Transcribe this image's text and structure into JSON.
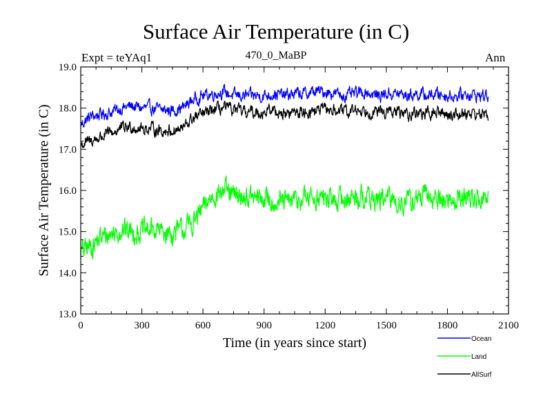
{
  "chart_data": {
    "type": "line",
    "title": "Surface Air Temperature (in C)",
    "subtitle": "470_0_MaBP",
    "experiment_label": "Expt = teYAq1",
    "season_label": "Ann",
    "xlabel": "Time (in years since start)",
    "ylabel": "Surface Air Temperature (in C)",
    "xlim": [
      0,
      2100
    ],
    "ylim": [
      13.0,
      19.0
    ],
    "x_ticks": [
      "0",
      "300",
      "600",
      "900",
      "1200",
      "1500",
      "1800",
      "2100"
    ],
    "y_ticks": [
      "13.0",
      "14.0",
      "15.0",
      "16.0",
      "17.0",
      "18.0",
      "19.0"
    ],
    "x": [
      0,
      50,
      100,
      150,
      200,
      250,
      300,
      350,
      400,
      450,
      500,
      550,
      600,
      650,
      700,
      750,
      800,
      850,
      900,
      950,
      1000,
      1050,
      1100,
      1150,
      1200,
      1250,
      1300,
      1350,
      1400,
      1450,
      1500,
      1550,
      1600,
      1650,
      1700,
      1750,
      1800,
      1850,
      1900,
      1950,
      2000
    ],
    "series": [
      {
        "name": "Ocean",
        "color": "#0000ff",
        "noise": 0.12,
        "values": [
          17.6,
          17.8,
          17.85,
          17.9,
          18.0,
          18.05,
          18.0,
          18.0,
          17.95,
          17.95,
          18.0,
          18.2,
          18.3,
          18.35,
          18.4,
          18.3,
          18.3,
          18.3,
          18.3,
          18.35,
          18.3,
          18.35,
          18.35,
          18.4,
          18.4,
          18.35,
          18.3,
          18.35,
          18.4,
          18.3,
          18.35,
          18.35,
          18.3,
          18.35,
          18.3,
          18.35,
          18.3,
          18.3,
          18.35,
          18.3,
          18.3
        ]
      },
      {
        "name": "Land",
        "color": "#00ff00",
        "noise": 0.22,
        "values": [
          14.5,
          14.65,
          14.85,
          14.95,
          15.05,
          15.0,
          15.0,
          15.05,
          15.0,
          14.95,
          15.05,
          15.2,
          15.55,
          15.9,
          16.0,
          15.85,
          15.85,
          15.8,
          15.8,
          15.75,
          15.7,
          15.75,
          15.8,
          15.85,
          15.8,
          15.75,
          15.8,
          15.85,
          15.85,
          15.75,
          15.8,
          15.75,
          15.7,
          15.8,
          15.85,
          15.8,
          15.75,
          15.8,
          15.85,
          15.8,
          15.8
        ]
      },
      {
        "name": "AllSurf",
        "color": "#000000",
        "noise": 0.12,
        "values": [
          17.1,
          17.2,
          17.3,
          17.4,
          17.5,
          17.55,
          17.5,
          17.5,
          17.45,
          17.45,
          17.5,
          17.75,
          17.85,
          17.95,
          18.0,
          17.95,
          17.9,
          17.9,
          17.9,
          17.95,
          17.85,
          17.9,
          17.9,
          17.95,
          17.95,
          17.95,
          17.9,
          17.95,
          17.95,
          17.9,
          17.9,
          17.9,
          17.85,
          17.9,
          17.85,
          17.9,
          17.85,
          17.85,
          17.9,
          17.85,
          17.85
        ]
      }
    ],
    "legend_position": "bottom-right"
  }
}
